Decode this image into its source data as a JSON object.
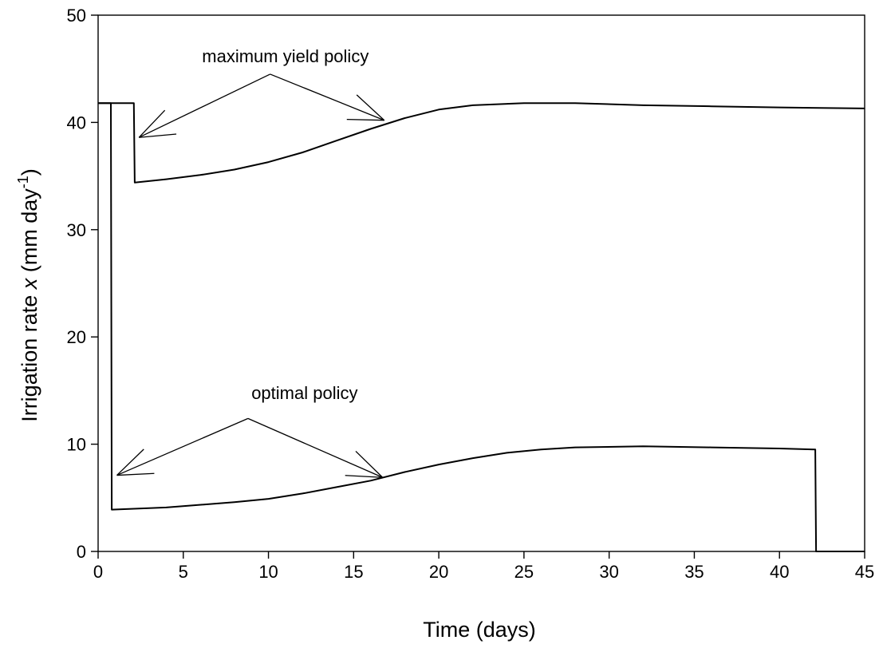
{
  "chart_data": {
    "type": "line",
    "xlabel": "Time (days)",
    "ylabel": {
      "prefix": "Irrigation rate ",
      "variable": "x",
      "unit_open": " (mm day",
      "superscript": "-1",
      "unit_close": ")"
    },
    "xlim": [
      0,
      45
    ],
    "ylim": [
      0,
      50
    ],
    "xticks": [
      0,
      5,
      10,
      15,
      20,
      25,
      30,
      35,
      40,
      45
    ],
    "yticks": [
      0,
      10,
      20,
      30,
      40,
      50
    ],
    "grid": false,
    "series": [
      {
        "label": "maximum yield policy",
        "color": "#000000",
        "points": [
          [
            0,
            41.8
          ],
          [
            2.1,
            41.8
          ],
          [
            2.15,
            34.4
          ],
          [
            4,
            34.7
          ],
          [
            6,
            35.1
          ],
          [
            8,
            35.6
          ],
          [
            10,
            36.3
          ],
          [
            12,
            37.2
          ],
          [
            14,
            38.3
          ],
          [
            16,
            39.4
          ],
          [
            18,
            40.4
          ],
          [
            20,
            41.2
          ],
          [
            22,
            41.6
          ],
          [
            25,
            41.8
          ],
          [
            28,
            41.8
          ],
          [
            32,
            41.6
          ],
          [
            36,
            41.5
          ],
          [
            40,
            41.4
          ],
          [
            45,
            41.3
          ]
        ]
      },
      {
        "label": "optimal policy",
        "color": "#000000",
        "points": [
          [
            0,
            41.8
          ],
          [
            0.75,
            41.8
          ],
          [
            0.8,
            3.9
          ],
          [
            4,
            4.1
          ],
          [
            8,
            4.6
          ],
          [
            10,
            4.9
          ],
          [
            12,
            5.4
          ],
          [
            14,
            6.0
          ],
          [
            16,
            6.6
          ],
          [
            18,
            7.4
          ],
          [
            20,
            8.1
          ],
          [
            22,
            8.7
          ],
          [
            24,
            9.2
          ],
          [
            26,
            9.5
          ],
          [
            28,
            9.7
          ],
          [
            32,
            9.8
          ],
          [
            36,
            9.7
          ],
          [
            40,
            9.6
          ],
          [
            42.1,
            9.5
          ],
          [
            42.15,
            0
          ],
          [
            45,
            0
          ]
        ]
      }
    ],
    "annotations": [
      {
        "text": "maximum yield policy",
        "text_at": [
          6.1,
          45.6
        ],
        "from": [
          10.1,
          44.5
        ],
        "arrows_to": [
          [
            2.4,
            38.6
          ],
          [
            16.8,
            40.2
          ]
        ]
      },
      {
        "text": "optimal policy",
        "text_at": [
          9,
          14.2
        ],
        "from": [
          8.8,
          12.4
        ],
        "arrows_to": [
          [
            1.1,
            7.1
          ],
          [
            16.7,
            6.9
          ]
        ]
      }
    ]
  }
}
